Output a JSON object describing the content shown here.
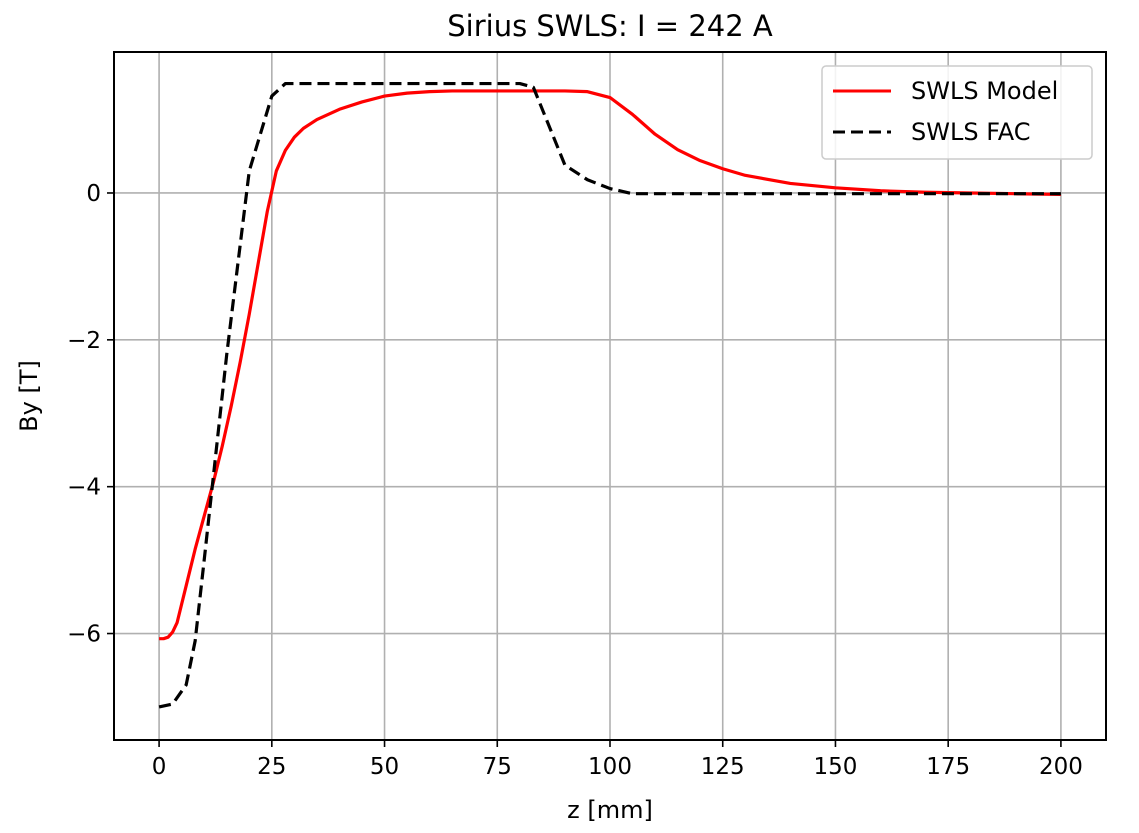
{
  "chart_data": {
    "type": "line",
    "title": "Sirius SWLS: I = 242 A",
    "xlabel": "z [mm]",
    "ylabel": "By [T]",
    "xlim": [
      -10,
      210
    ],
    "ylim": [
      -7.45,
      1.92
    ],
    "xticks": [
      0,
      25,
      50,
      75,
      100,
      125,
      150,
      175,
      200
    ],
    "yticks": [
      -6,
      -4,
      -2,
      0
    ],
    "xtick_labels": [
      "0",
      "25",
      "50",
      "75",
      "100",
      "125",
      "150",
      "175",
      "200"
    ],
    "ytick_labels": [
      "−6",
      "−4",
      "−2",
      "0"
    ],
    "grid": true,
    "legend_position": "top-right",
    "series": [
      {
        "name": "SWLS Model",
        "color": "#ff0000",
        "style": "solid",
        "x": [
          0,
          1,
          2,
          3,
          4,
          5,
          6,
          8,
          10,
          12,
          14,
          16,
          18,
          20,
          22,
          24,
          26,
          28,
          30,
          32,
          35,
          40,
          45,
          50,
          55,
          60,
          65,
          70,
          75,
          80,
          85,
          90,
          95,
          100,
          105,
          110,
          115,
          120,
          125,
          130,
          140,
          150,
          160,
          170,
          180,
          190,
          200
        ],
        "y": [
          -6.07,
          -6.07,
          -6.05,
          -5.98,
          -5.85,
          -5.6,
          -5.35,
          -4.85,
          -4.4,
          -3.95,
          -3.45,
          -2.9,
          -2.3,
          -1.65,
          -0.95,
          -0.25,
          0.3,
          0.58,
          0.76,
          0.88,
          1.0,
          1.14,
          1.24,
          1.32,
          1.36,
          1.38,
          1.39,
          1.39,
          1.39,
          1.39,
          1.39,
          1.39,
          1.38,
          1.3,
          1.07,
          0.8,
          0.59,
          0.44,
          0.33,
          0.24,
          0.13,
          0.07,
          0.03,
          0.01,
          0.0,
          -0.01,
          -0.02
        ],
        "note_omit": true
      },
      {
        "name": "SWLS FAC",
        "color": "#000000",
        "style": "dashed",
        "x": [
          0,
          3,
          6,
          8,
          10,
          15,
          20,
          25,
          28,
          30,
          40,
          50,
          60,
          70,
          80,
          83,
          90,
          95,
          100,
          105,
          120,
          150,
          175,
          200
        ],
        "y": [
          -7.0,
          -6.96,
          -6.7,
          -6.1,
          -5.0,
          -2.2,
          0.3,
          1.32,
          1.49,
          1.49,
          1.49,
          1.49,
          1.49,
          1.49,
          1.49,
          1.44,
          0.38,
          0.18,
          0.06,
          -0.01,
          -0.01,
          -0.01,
          -0.01,
          -0.01
        ]
      }
    ]
  }
}
